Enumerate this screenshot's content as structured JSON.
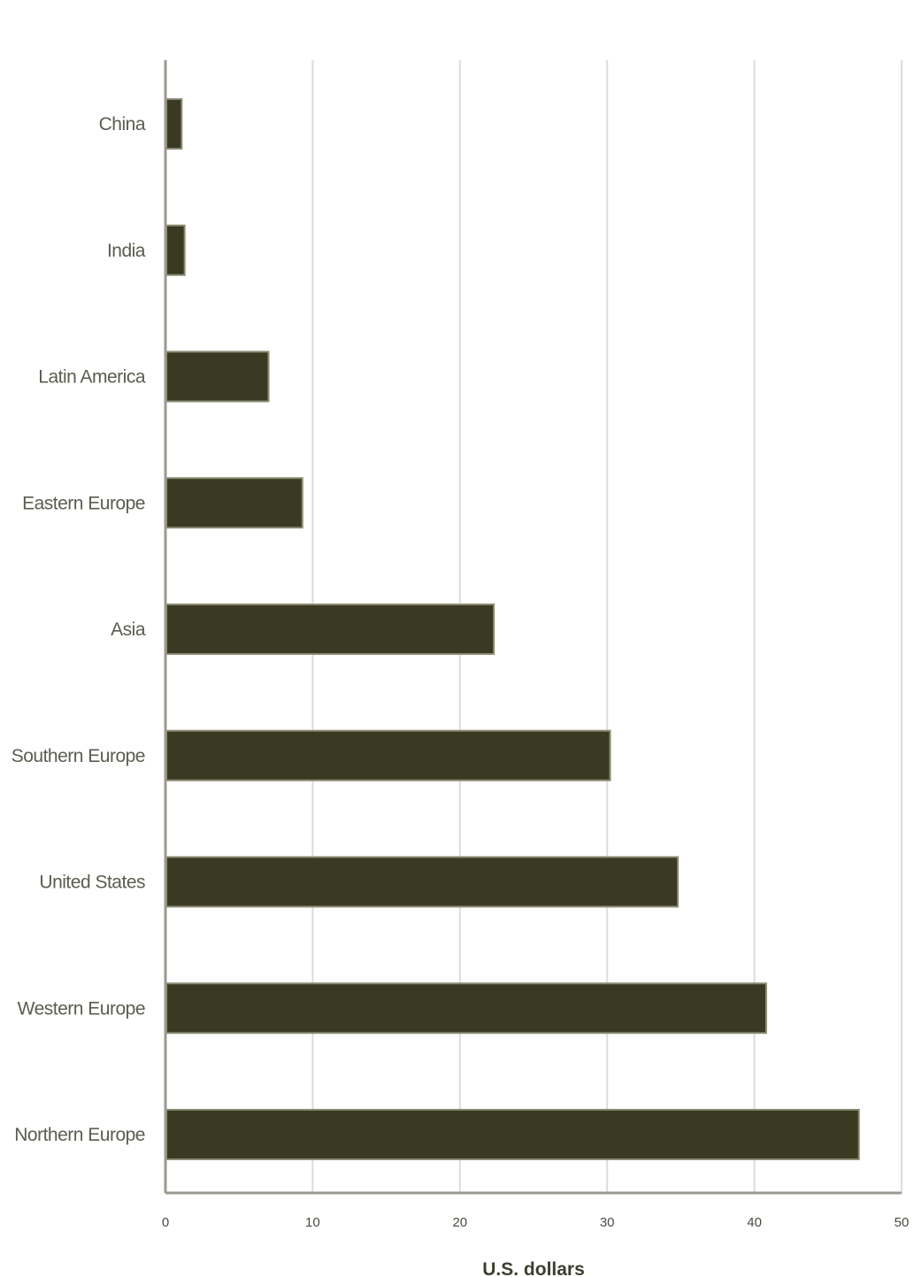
{
  "chart_data": {
    "type": "bar",
    "orientation": "horizontal",
    "categories": [
      "China",
      "India",
      "Latin America",
      "Eastern Europe",
      "Asia",
      "Southern Europe",
      "United States",
      "Western Europe",
      "Northern Europe"
    ],
    "values": [
      1.1,
      1.3,
      7.0,
      9.3,
      22.3,
      30.2,
      34.8,
      40.8,
      47.1
    ],
    "title": "",
    "xlabel": "U.S. dollars",
    "ylabel": "",
    "xlim": [
      0,
      50
    ],
    "xticks": [
      0,
      10,
      20,
      30,
      40,
      50
    ],
    "xtick_labels": [
      "0",
      "10",
      "20",
      "30",
      "40",
      "50"
    ],
    "grid": "vertical",
    "legend": "none",
    "colors": {
      "bar": "#3a3a22",
      "bar_edge": "#8a8a72",
      "grid": "#dcdcdc",
      "axis": "#9a9a90"
    }
  }
}
